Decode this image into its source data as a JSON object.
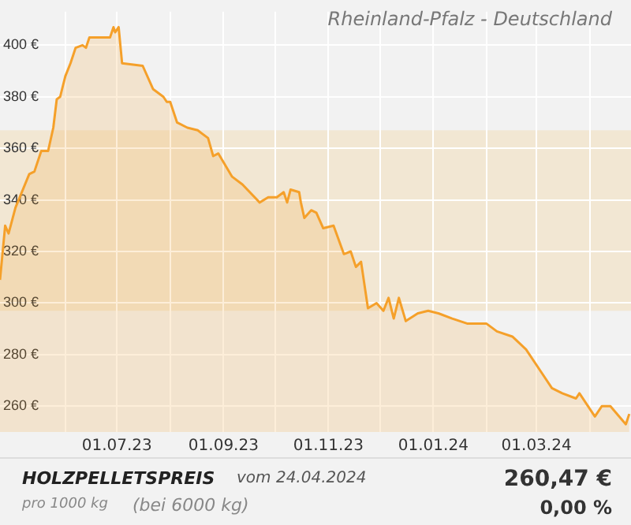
{
  "chart_data": {
    "type": "area",
    "title": "Rheinland-Pfalz - Deutschland",
    "x": [
      "2023-04-24",
      "2023-04-27",
      "2023-04-29",
      "2023-05-03",
      "2023-05-11",
      "2023-05-14",
      "2023-05-18",
      "2023-05-22",
      "2023-05-25",
      "2023-05-27",
      "2023-05-29",
      "2023-06-01",
      "2023-06-04",
      "2023-06-07",
      "2023-06-11",
      "2023-06-13",
      "2023-06-15",
      "2023-06-23",
      "2023-06-27",
      "2023-06-29",
      "2023-06-30",
      "2023-07-02",
      "2023-07-04",
      "2023-07-16",
      "2023-07-22",
      "2023-07-28",
      "2023-07-30",
      "2023-08-01",
      "2023-08-05",
      "2023-08-11",
      "2023-08-17",
      "2023-08-23",
      "2023-08-26",
      "2023-08-29",
      "2023-09-06",
      "2023-09-12",
      "2023-09-22",
      "2023-09-27",
      "2023-10-02",
      "2023-10-06",
      "2023-10-08",
      "2023-10-10",
      "2023-10-15",
      "2023-10-16",
      "2023-10-18",
      "2023-10-22",
      "2023-10-25",
      "2023-10-29",
      "2023-11-04",
      "2023-11-10",
      "2023-11-14",
      "2023-11-17",
      "2023-11-20",
      "2023-11-24",
      "2023-11-29",
      "2023-12-03",
      "2023-12-06",
      "2023-12-09",
      "2023-12-12",
      "2023-12-16",
      "2023-12-23",
      "2023-12-29",
      "2024-01-04",
      "2024-01-12",
      "2024-01-21",
      "2024-02-01",
      "2024-02-07",
      "2024-02-16",
      "2024-02-24",
      "2024-03-04",
      "2024-03-10",
      "2024-03-16",
      "2024-03-24",
      "2024-03-26",
      "2024-04-04",
      "2024-04-08",
      "2024-04-13",
      "2024-04-22",
      "2024-04-24"
    ],
    "series": [
      {
        "color": "#f5a02a",
        "values": [
          309,
          330,
          327,
          337,
          350,
          351,
          359,
          359,
          368,
          379,
          380,
          388,
          393,
          399,
          400,
          399,
          403,
          403,
          403,
          407,
          405,
          407,
          393,
          392,
          383,
          380,
          378,
          378,
          370,
          368,
          367,
          364,
          357,
          358,
          349,
          346,
          339,
          341,
          341,
          343,
          339,
          344,
          343,
          339,
          333,
          336,
          335,
          329,
          330,
          319,
          320,
          314,
          316,
          298,
          300,
          297,
          302,
          294,
          302,
          293,
          296,
          297,
          296,
          294,
          292,
          292,
          289,
          287,
          282,
          273,
          267,
          265,
          263,
          265,
          256,
          260,
          260,
          253,
          257
        ]
      }
    ],
    "xlim": [
      "2023-04-24",
      "2024-04-25"
    ],
    "xticks": [
      {
        "value": "2023-06-01",
        "label": null
      },
      {
        "value": "2023-07-01",
        "label": "01.07.23"
      },
      {
        "value": "2023-08-01",
        "label": null
      },
      {
        "value": "2023-09-01",
        "label": "01.09.23"
      },
      {
        "value": "2023-10-01",
        "label": null
      },
      {
        "value": "2023-11-01",
        "label": "01.11.23"
      },
      {
        "value": "2023-12-01",
        "label": null
      },
      {
        "value": "2024-01-01",
        "label": "01.01.24"
      },
      {
        "value": "2024-02-01",
        "label": null
      },
      {
        "value": "2024-03-01",
        "label": "01.03.24"
      },
      {
        "value": "2024-04-01",
        "label": null
      }
    ],
    "ylim": [
      250,
      413
    ],
    "yticks": [
      {
        "value": 260,
        "label": "260 €"
      },
      {
        "value": 280,
        "label": "280 €"
      },
      {
        "value": 300,
        "label": "300 €"
      },
      {
        "value": 320,
        "label": "320 €"
      },
      {
        "value": 340,
        "label": "340 €"
      },
      {
        "value": 360,
        "label": "360 €"
      },
      {
        "value": 380,
        "label": "380 €"
      },
      {
        "value": 400,
        "label": "400 €"
      }
    ],
    "bands": [
      {
        "axis": "y",
        "from": 297,
        "to": 367,
        "color": "#f2e2c6"
      }
    ],
    "grid": true,
    "legend": false,
    "annotations": [
      "HOLZPELLETSPREIS",
      "vom 24.04.2024",
      "pro 1000 kg",
      "(bei 6000 kg)",
      "260,47 €",
      "0,00 %"
    ]
  }
}
